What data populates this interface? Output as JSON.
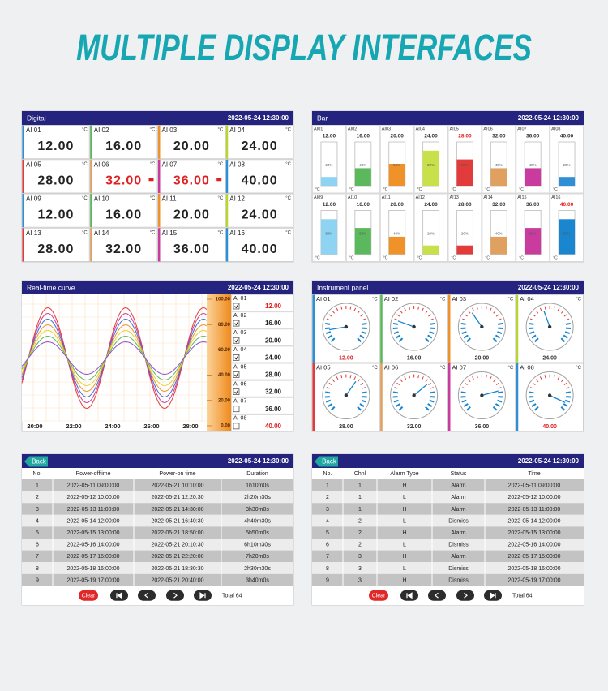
{
  "title": "MULTIPLE DISPLAY INTERFACES",
  "digital": {
    "title": "Digital",
    "datetime": "2022-05-24 12:30:00",
    "unit": "°C",
    "channels": [
      {
        "name": "AI 01",
        "value": "12.00",
        "color": "#2f8fd6"
      },
      {
        "name": "AI 02",
        "value": "16.00",
        "color": "#5cb85c"
      },
      {
        "name": "AI 03",
        "value": "20.00",
        "color": "#f0922a"
      },
      {
        "name": "AI 04",
        "value": "24.00",
        "color": "#b9d532"
      },
      {
        "name": "AI 05",
        "value": "28.00",
        "color": "#e23b3b"
      },
      {
        "name": "AI 06",
        "value": "32.00",
        "color": "#e0a060",
        "alarm": true
      },
      {
        "name": "AI 07",
        "value": "36.00",
        "color": "#c93c9d",
        "alarm": true
      },
      {
        "name": "AI 08",
        "value": "40.00",
        "color": "#2f8fd6"
      },
      {
        "name": "AI 09",
        "value": "12.00",
        "color": "#2f8fd6"
      },
      {
        "name": "AI 10",
        "value": "16.00",
        "color": "#5cb85c"
      },
      {
        "name": "AI 11",
        "value": "20.00",
        "color": "#f0922a"
      },
      {
        "name": "AI 12",
        "value": "24.00",
        "color": "#b9d532"
      },
      {
        "name": "AI 13",
        "value": "28.00",
        "color": "#e23b3b"
      },
      {
        "name": "AI 14",
        "value": "32.00",
        "color": "#e0a060"
      },
      {
        "name": "AI 15",
        "value": "36.00",
        "color": "#c93c9d"
      },
      {
        "name": "AI 16",
        "value": "40.00",
        "color": "#2f8fd6"
      }
    ]
  },
  "bar": {
    "title": "Bar",
    "datetime": "2022-05-24 12:30:00",
    "unit": "°C",
    "channels": [
      {
        "name": "AI01",
        "value": "12.00",
        "fill": 20,
        "fill_label": "20%",
        "color": "#8fd3f2"
      },
      {
        "name": "AI02",
        "value": "16.00",
        "fill": 40,
        "fill_label": "40%",
        "color": "#5cb85c"
      },
      {
        "name": "AI03",
        "value": "20.00",
        "fill": 50,
        "fill_label": "50%",
        "color": "#f0922a"
      },
      {
        "name": "AI04",
        "value": "24.00",
        "fill": 80,
        "fill_label": "80%",
        "color": "#c8e04a"
      },
      {
        "name": "AI05",
        "value": "28.00",
        "fill": 60,
        "fill_label": "60%",
        "color": "#e23b3b",
        "alarm": true
      },
      {
        "name": "AI06",
        "value": "32.00",
        "fill": 40,
        "fill_label": "40%",
        "color": "#e0a060"
      },
      {
        "name": "AI07",
        "value": "36.00",
        "fill": 40,
        "fill_label": "40%",
        "color": "#c93c9d"
      },
      {
        "name": "AI08",
        "value": "40.00",
        "fill": 20,
        "fill_label": "20%",
        "color": "#2f8fd6"
      },
      {
        "name": "AI09",
        "value": "12.00",
        "fill": 80,
        "fill_label": "80%",
        "color": "#8fd3f2"
      },
      {
        "name": "AI10",
        "value": "16.00",
        "fill": 60,
        "fill_label": "60%",
        "color": "#5cb85c"
      },
      {
        "name": "AI11",
        "value": "20.00",
        "fill": 40,
        "fill_label": "40%",
        "color": "#f0922a"
      },
      {
        "name": "AI12",
        "value": "24.00",
        "fill": 20,
        "fill_label": "20%",
        "color": "#c8e04a"
      },
      {
        "name": "AI13",
        "value": "28.00",
        "fill": 20,
        "fill_label": "20%",
        "color": "#e23b3b"
      },
      {
        "name": "AI14",
        "value": "32.00",
        "fill": 40,
        "fill_label": "40%",
        "color": "#e0a060"
      },
      {
        "name": "AI15",
        "value": "36.00",
        "fill": 60,
        "fill_label": "60%",
        "color": "#c93c9d"
      },
      {
        "name": "AI16",
        "value": "40.00",
        "fill": 80,
        "fill_label": "80%",
        "color": "#1a86d0",
        "alarm": true
      }
    ]
  },
  "curve": {
    "title": "Real-time curve",
    "datetime": "2022-05-24 12:30:00",
    "scale": [
      "100.00",
      "80.00",
      "60.00",
      "40.00",
      "20.00",
      "0.00"
    ],
    "times": [
      "20:00",
      "22:00",
      "24:00",
      "26:00",
      "28:00"
    ],
    "channels": [
      {
        "name": "AI 01",
        "value": "12.00",
        "checked": true,
        "color": "#e23b3b",
        "alarm": true
      },
      {
        "name": "AI 02",
        "value": "16.00",
        "checked": true,
        "color": "#c93c9d"
      },
      {
        "name": "AI 03",
        "value": "20.00",
        "checked": true,
        "color": "#3a6fd8"
      },
      {
        "name": "AI 04",
        "value": "24.00",
        "checked": true,
        "color": "#f0922a"
      },
      {
        "name": "AI 05",
        "value": "28.00",
        "checked": true,
        "color": "#e6d230"
      },
      {
        "name": "AI 06",
        "value": "32.00",
        "checked": true,
        "color": "#5cb85c"
      },
      {
        "name": "AI 07",
        "value": "36.00",
        "checked": false,
        "color": "#8a4fd0"
      },
      {
        "name": "AI 08",
        "value": "40.00",
        "checked": false,
        "color": "#2fb5c0",
        "alarm": true
      }
    ]
  },
  "gauges": {
    "title": "Instrument panel",
    "datetime": "2022-05-24 12:30:00",
    "unit": "°C",
    "channels": [
      {
        "name": "AI 01",
        "value": "12.00",
        "color": "#2f8fd6",
        "alarm": true
      },
      {
        "name": "AI 02",
        "value": "16.00",
        "color": "#5cb85c"
      },
      {
        "name": "AI 03",
        "value": "20.00",
        "color": "#f0922a"
      },
      {
        "name": "AI 04",
        "value": "24.00",
        "color": "#b9d532"
      },
      {
        "name": "AI 05",
        "value": "28.00",
        "color": "#e23b3b"
      },
      {
        "name": "AI 06",
        "value": "32.00",
        "color": "#e0a060"
      },
      {
        "name": "AI 07",
        "value": "36.00",
        "color": "#c93c9d"
      },
      {
        "name": "AI 08",
        "value": "40.00",
        "color": "#2f8fd6",
        "alarm": true
      }
    ]
  },
  "power_log": {
    "back": "Back",
    "datetime": "2022-05-24 12:30:00",
    "columns": [
      "No.",
      "Power-offtime",
      "Power-on time",
      "Duration"
    ],
    "rows": [
      [
        "1",
        "2022-05-11 09:00:00",
        "2022-05-21 10:10:00",
        "1h10m0s"
      ],
      [
        "2",
        "2022-05-12 10:00:00",
        "2022-05-21 12:20:30",
        "2h20m30s"
      ],
      [
        "3",
        "2022-05-13 11:00:00",
        "2022-05-21 14:30:00",
        "3h30m0s"
      ],
      [
        "4",
        "2022-05-14 12:00:00",
        "2022-05-21 16:40:30",
        "4h40m30s"
      ],
      [
        "5",
        "2022-05-15 13:00:00",
        "2022-05-21 18:50:00",
        "5h50m0s"
      ],
      [
        "6",
        "2022-05-16 14:00:00",
        "2022-05-21 20:10:30",
        "6h10m30s"
      ],
      [
        "7",
        "2022-05-17 15:00:00",
        "2022-05-21 22:20:00",
        "7h20m0s"
      ],
      [
        "8",
        "2022-05-18 16:00:00",
        "2022-05-21 18:30:30",
        "2h30m30s"
      ],
      [
        "9",
        "2022-05-19 17:00:00",
        "2022-05-21 20:40:00",
        "3h40m0s"
      ]
    ],
    "clear": "Clear",
    "total": "Total 64"
  },
  "alarm_log": {
    "back": "Back",
    "datetime": "2022-05-24 12:30:00",
    "columns": [
      "No.",
      "Chnl",
      "Alarm Type",
      "Status",
      "Time"
    ],
    "rows": [
      [
        "1",
        "1",
        "H",
        "Alarm",
        "2022-05-11 09:00:00"
      ],
      [
        "2",
        "1",
        "L",
        "Alarm",
        "2022-05-12 10:00:00"
      ],
      [
        "3",
        "1",
        "H",
        "Alarm",
        "2022-05-13 11:00:00"
      ],
      [
        "4",
        "2",
        "L",
        "Dismiss",
        "2022-05-14 12:00:00"
      ],
      [
        "5",
        "2",
        "H",
        "Alarm",
        "2022-05-15 13:00:00"
      ],
      [
        "6",
        "2",
        "L",
        "Dismiss",
        "2022-05-16 14:00:00"
      ],
      [
        "7",
        "3",
        "H",
        "Alarm",
        "2022-05-17 15:00:00"
      ],
      [
        "8",
        "3",
        "L",
        "Dismiss",
        "2022-05-18 16:00:00"
      ],
      [
        "9",
        "3",
        "H",
        "Dismiss",
        "2022-05-19 17:00:00"
      ]
    ],
    "clear": "Clear",
    "total": "Total 64"
  }
}
